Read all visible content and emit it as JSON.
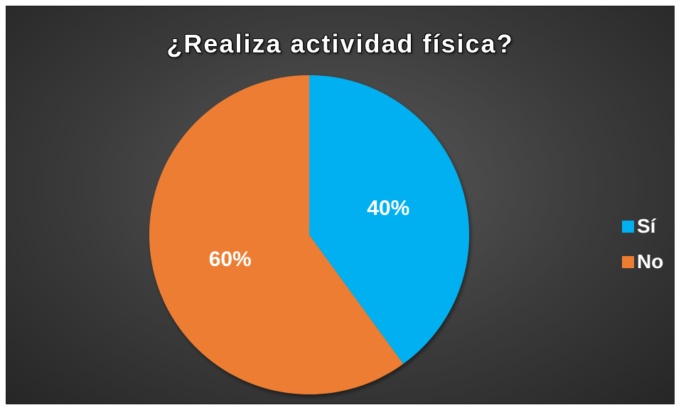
{
  "chart_data": {
    "type": "pie",
    "title": "¿Realiza actividad física?",
    "categories": [
      "Sí",
      "No"
    ],
    "values": [
      40,
      60
    ],
    "value_labels": [
      "40%",
      "60%"
    ],
    "colors": [
      "#00B0F0",
      "#ED7D31"
    ],
    "legend_position": "right",
    "background": "#3b3b3b"
  }
}
